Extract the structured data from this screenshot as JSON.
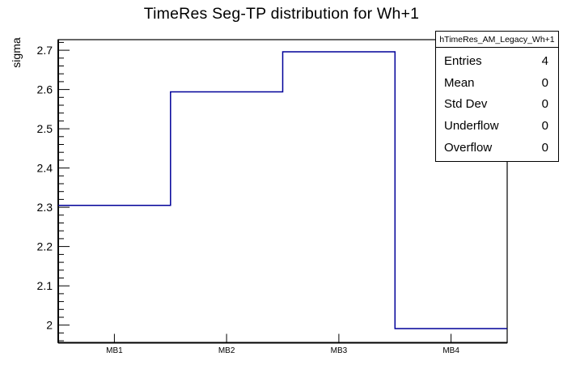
{
  "colors": {
    "hist_line": "#000099",
    "frame": "#000000",
    "background": "#ffffff",
    "text": "#000000"
  },
  "stats_box": {
    "header": "hTimeRes_AM_Legacy_Wh+1",
    "rows": [
      {
        "label": "Entries",
        "value": "4"
      },
      {
        "label": "Mean",
        "value": "0"
      },
      {
        "label": "Std Dev",
        "value": "0"
      },
      {
        "label": "Underflow",
        "value": "0"
      },
      {
        "label": "Overflow",
        "value": "0"
      }
    ]
  },
  "chart_data": {
    "type": "bar",
    "style": "step-outline-histogram",
    "title": "TimeRes Seg-TP distribution for Wh+1",
    "categories": [
      "MB1",
      "MB2",
      "MB3",
      "MB4"
    ],
    "values": [
      2.305,
      2.594,
      2.696,
      1.991
    ],
    "xlabel": "",
    "ylabel": "sigma",
    "ylim": [
      1.955,
      2.727
    ],
    "yticks": [
      2,
      2.1,
      2.2,
      2.3,
      2.4,
      2.5,
      2.6,
      2.7
    ],
    "ytick_labels": [
      "2",
      "2.1",
      "2.2",
      "2.3",
      "2.4",
      "2.5",
      "2.6",
      "2.7"
    ],
    "y_minor_step": 0.02,
    "grid": false,
    "legend": false
  }
}
